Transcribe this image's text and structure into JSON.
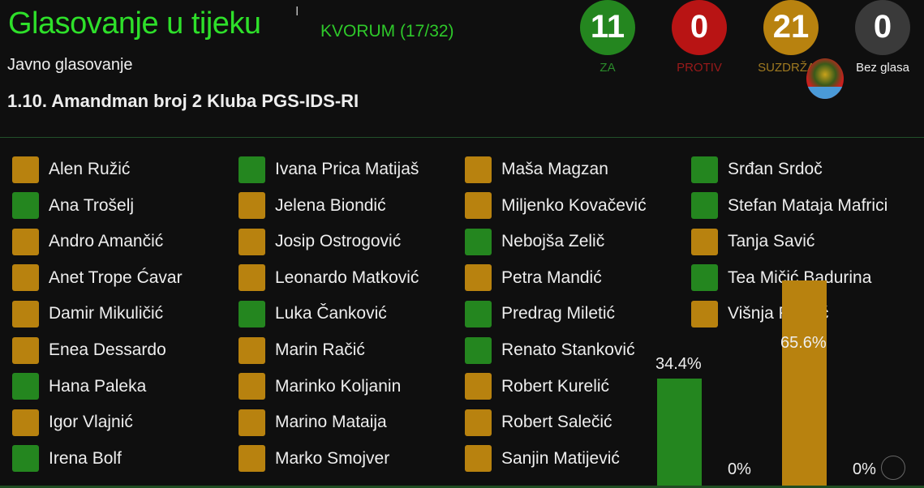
{
  "header": {
    "title": "Glasovanje u tijeku",
    "quorum": "KVORUM (17/32)",
    "subtitle": "Javno glasovanje",
    "agenda_item": "1.10. Amandman broj 2 Kluba PGS-IDS-RI"
  },
  "colors": {
    "za": "#24861f",
    "protiv": "#b81414",
    "suzdrzan": "#b8820f",
    "bez_glasa": "#3a3a3a"
  },
  "counts": [
    {
      "key": "za",
      "value": "11",
      "label": "ZA",
      "color": "#24861f",
      "label_color": "#2a8a2a"
    },
    {
      "key": "protiv",
      "value": "0",
      "label": "PROTIV",
      "color": "#b81414",
      "label_color": "#9a1a1a"
    },
    {
      "key": "suzdrzan",
      "value": "21",
      "label": "SUZDRŽAN",
      "color": "#b8820f",
      "label_color": "#a07a20"
    },
    {
      "key": "bez_glasa",
      "value": "0",
      "label": "Bez glasa",
      "color": "#3a3a3a",
      "label_color": "#eeeeee"
    }
  ],
  "members": [
    [
      {
        "name": "Alen Ružić",
        "vote": "suzdrzan"
      },
      {
        "name": "Ana Trošelj",
        "vote": "za"
      },
      {
        "name": "Andro Amančić",
        "vote": "suzdrzan"
      },
      {
        "name": "Anet Trope Ćavar",
        "vote": "suzdrzan"
      },
      {
        "name": "Damir Mikuličić",
        "vote": "suzdrzan"
      },
      {
        "name": "Enea Dessardo",
        "vote": "suzdrzan"
      },
      {
        "name": "Hana Paleka",
        "vote": "za"
      },
      {
        "name": "Igor Vlajnić",
        "vote": "suzdrzan"
      },
      {
        "name": "Irena Bolf",
        "vote": "za"
      }
    ],
    [
      {
        "name": "Ivana Prica Matijaš",
        "vote": "za"
      },
      {
        "name": "Jelena Biondić",
        "vote": "suzdrzan"
      },
      {
        "name": "Josip Ostrogović",
        "vote": "suzdrzan"
      },
      {
        "name": "Leonardo Matković",
        "vote": "suzdrzan"
      },
      {
        "name": "Luka Čanković",
        "vote": "za"
      },
      {
        "name": "Marin Račić",
        "vote": "suzdrzan"
      },
      {
        "name": "Marinko Koljanin",
        "vote": "suzdrzan"
      },
      {
        "name": "Marino Mataija",
        "vote": "suzdrzan"
      },
      {
        "name": "Marko Smojver",
        "vote": "suzdrzan"
      }
    ],
    [
      {
        "name": "Maša Magzan",
        "vote": "suzdrzan"
      },
      {
        "name": "Miljenko Kovačević",
        "vote": "suzdrzan"
      },
      {
        "name": "Nebojša Zelič",
        "vote": "za"
      },
      {
        "name": "Petra Mandić",
        "vote": "suzdrzan"
      },
      {
        "name": "Predrag Miletić",
        "vote": "za"
      },
      {
        "name": "Renato Stanković",
        "vote": "za"
      },
      {
        "name": "Robert Kurelić",
        "vote": "suzdrzan"
      },
      {
        "name": "Robert Salečić",
        "vote": "suzdrzan"
      },
      {
        "name": "Sanjin Matijević",
        "vote": "suzdrzan"
      }
    ],
    [
      {
        "name": "Srđan Srdoč",
        "vote": "za"
      },
      {
        "name": "Stefan Mataja Mafrici",
        "vote": "za"
      },
      {
        "name": "Tanja Savić",
        "vote": "suzdrzan"
      },
      {
        "name": "Tea Mičić Badurina",
        "vote": "za"
      },
      {
        "name": "Višnja Fabčić",
        "vote": "suzdrzan"
      }
    ]
  ],
  "chart_data": {
    "type": "bar",
    "categories": [
      "ZA",
      "PROTIV",
      "SUZDRŽAN",
      "Bez glasa"
    ],
    "values": [
      34.4,
      0,
      65.6,
      0
    ],
    "labels": [
      "34.4%",
      "0%",
      "65.6%",
      "0%"
    ],
    "colors": [
      "#24861f",
      "#b81414",
      "#b8820f",
      "#3a3a3a"
    ],
    "ylim": [
      0,
      100
    ]
  }
}
